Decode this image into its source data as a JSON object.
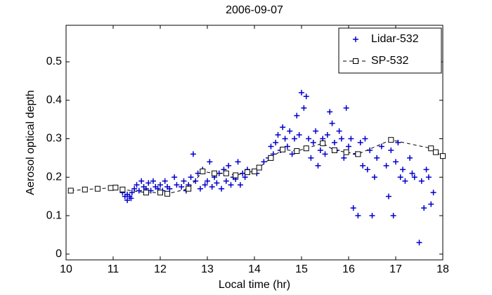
{
  "chart_data": {
    "type": "scatter",
    "title": "2006-09-07",
    "x_label": "Local time (hr)",
    "y_label": "Aerosol optical depth",
    "xlim": [
      10,
      18
    ],
    "ylim": [
      -0.015,
      0.595
    ],
    "xticks": [
      10,
      11,
      12,
      13,
      14,
      15,
      16,
      17,
      18
    ],
    "yticks": [
      0,
      0.1,
      0.2,
      0.3,
      0.4,
      0.5
    ],
    "legend": "top-right",
    "series": [
      {
        "name": "Lidar-532",
        "color": "#0000cc",
        "marker": "plus",
        "line": false,
        "x": [
          11.2,
          11.25,
          11.3,
          11.35,
          11.4,
          11.3,
          11.38,
          11.45,
          11.5,
          11.55,
          11.6,
          11.65,
          11.7,
          11.75,
          11.8,
          11.85,
          11.9,
          11.95,
          12.0,
          12.05,
          12.1,
          12.15,
          12.2,
          12.3,
          12.35,
          12.45,
          12.5,
          12.55,
          12.6,
          12.65,
          12.7,
          12.75,
          12.8,
          12.85,
          12.9,
          12.95,
          13.0,
          13.05,
          13.1,
          13.15,
          13.2,
          13.25,
          13.3,
          13.35,
          13.4,
          13.45,
          13.5,
          13.55,
          13.6,
          13.65,
          13.7,
          13.75,
          13.8,
          13.85,
          14.05,
          14.2,
          14.3,
          14.35,
          14.4,
          14.45,
          14.5,
          14.55,
          14.6,
          14.65,
          14.7,
          14.75,
          14.8,
          14.85,
          14.9,
          14.95,
          15.0,
          15.05,
          15.1,
          15.15,
          15.2,
          15.25,
          15.3,
          15.35,
          15.4,
          15.45,
          15.5,
          15.55,
          15.6,
          15.65,
          15.7,
          15.75,
          15.8,
          15.85,
          15.9,
          15.95,
          16.0,
          16.05,
          16.1,
          16.15,
          16.2,
          16.25,
          16.3,
          16.35,
          16.4,
          16.45,
          16.5,
          16.55,
          16.6,
          16.7,
          16.8,
          16.85,
          16.9,
          16.95,
          17.0,
          17.05,
          17.1,
          17.15,
          17.2,
          17.3,
          17.35,
          17.4,
          17.5,
          17.55,
          17.6,
          17.65,
          17.7,
          17.75,
          17.8
        ],
        "values": [
          0.16,
          0.15,
          0.14,
          0.15,
          0.16,
          0.155,
          0.145,
          0.17,
          0.18,
          0.165,
          0.19,
          0.175,
          0.17,
          0.185,
          0.165,
          0.19,
          0.175,
          0.17,
          0.18,
          0.165,
          0.19,
          0.175,
          0.17,
          0.2,
          0.18,
          0.175,
          0.19,
          0.165,
          0.18,
          0.2,
          0.26,
          0.19,
          0.21,
          0.17,
          0.22,
          0.18,
          0.19,
          0.24,
          0.175,
          0.2,
          0.185,
          0.21,
          0.17,
          0.22,
          0.19,
          0.23,
          0.18,
          0.2,
          0.195,
          0.24,
          0.18,
          0.21,
          0.2,
          0.22,
          0.21,
          0.24,
          0.25,
          0.28,
          0.26,
          0.29,
          0.31,
          0.27,
          0.33,
          0.3,
          0.28,
          0.32,
          0.26,
          0.3,
          0.36,
          0.31,
          0.42,
          0.38,
          0.41,
          0.3,
          0.25,
          0.29,
          0.32,
          0.23,
          0.27,
          0.3,
          0.26,
          0.31,
          0.37,
          0.34,
          0.29,
          0.27,
          0.32,
          0.3,
          0.25,
          0.38,
          0.28,
          0.3,
          0.12,
          0.26,
          0.1,
          0.29,
          0.23,
          0.3,
          0.22,
          0.27,
          0.1,
          0.2,
          0.25,
          0.28,
          0.23,
          0.15,
          0.27,
          0.1,
          0.24,
          0.29,
          0.2,
          0.22,
          0.19,
          0.25,
          0.21,
          0.2,
          0.03,
          0.19,
          0.12,
          0.22,
          0.2,
          0.13,
          0.16
        ]
      },
      {
        "name": "SP-532",
        "color": "#000000",
        "marker": "square",
        "line": true,
        "x": [
          10.1,
          10.4,
          10.67,
          10.95,
          11.05,
          11.2,
          11.7,
          12.0,
          12.15,
          12.6,
          12.9,
          13.15,
          13.4,
          13.6,
          13.85,
          14.0,
          14.1,
          14.35,
          14.6,
          14.9,
          15.1,
          15.45,
          15.7,
          15.95,
          16.2,
          16.9,
          17.75,
          17.85,
          18.0
        ],
        "values": [
          0.165,
          0.168,
          0.17,
          0.172,
          0.173,
          0.168,
          0.16,
          0.16,
          0.157,
          0.17,
          0.215,
          0.21,
          0.21,
          0.205,
          0.213,
          0.215,
          0.225,
          0.25,
          0.272,
          0.268,
          0.275,
          0.288,
          0.27,
          0.265,
          0.26,
          0.297,
          0.275,
          0.265,
          0.255
        ]
      }
    ]
  }
}
